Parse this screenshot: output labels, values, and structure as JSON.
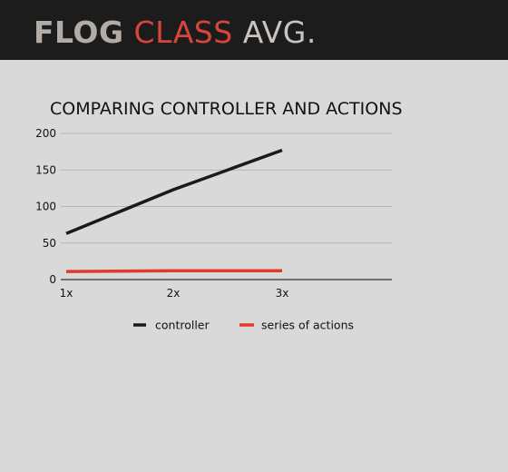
{
  "header": {
    "title_part1": "FLOG",
    "title_part2": "CLASS",
    "title_part3": "AVG."
  },
  "colors": {
    "header_bg": "#1c1c1c",
    "background": "#d9d9d9",
    "accent_red": "#d8453a",
    "controller_line": "#1a1a1a",
    "actions_line": "#e2392c",
    "grid": "#aaaaaa"
  },
  "chart_data": {
    "type": "line",
    "title": "COMPARING CONTROLLER AND ACTIONS",
    "xlabel": "",
    "ylabel": "",
    "categories": [
      "1x",
      "2x",
      "3x"
    ],
    "ylim": [
      0,
      200
    ],
    "yticks": [
      0,
      50,
      100,
      150,
      200
    ],
    "grid": true,
    "legend": "bottom",
    "series": [
      {
        "name": "controller",
        "values": [
          63,
          123,
          177
        ],
        "color": "#1a1a1a"
      },
      {
        "name": "series of actions",
        "values": [
          11,
          12,
          12
        ],
        "color": "#e2392c"
      }
    ]
  }
}
